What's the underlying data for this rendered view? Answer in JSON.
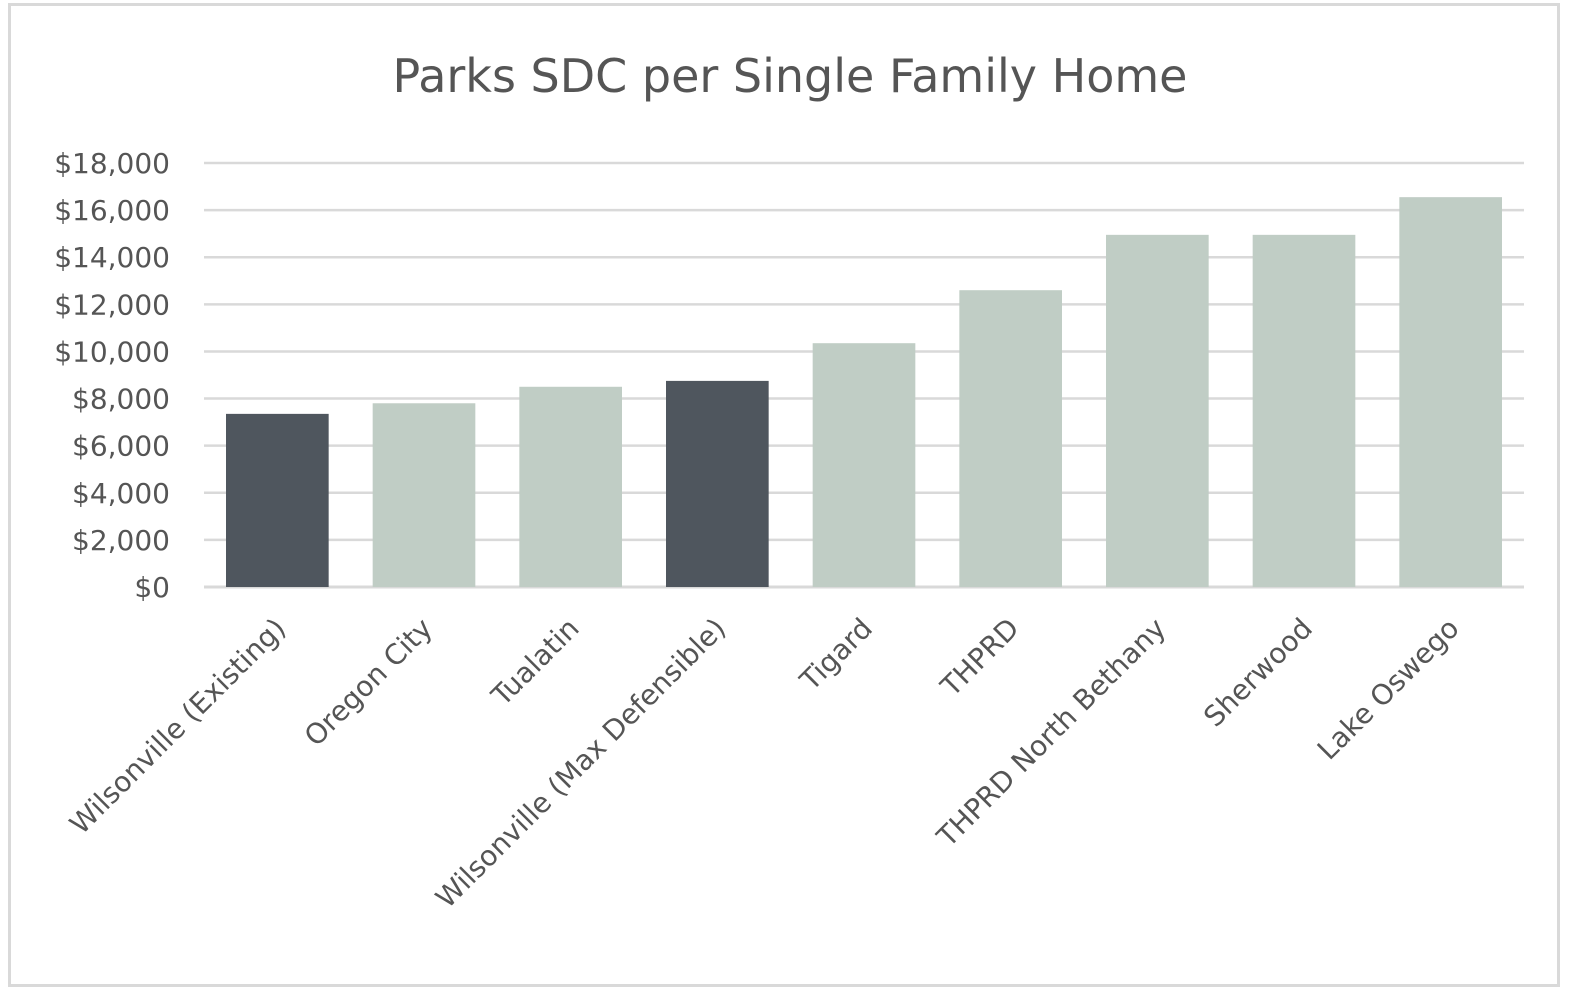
{
  "chart_data": {
    "type": "bar",
    "title": "Parks SDC per Single Family Home",
    "categories": [
      "Wilsonville (Existing)",
      "Oregon City",
      "Tualatin",
      "Wilsonville (Max Defensible)",
      "Tigard",
      "THPRD",
      "THPRD North Bethany",
      "Sherwood",
      "Lake Oswego"
    ],
    "values": [
      7350,
      7800,
      8500,
      8750,
      10350,
      12600,
      14950,
      14950,
      16550
    ],
    "highlight": [
      true,
      false,
      false,
      true,
      false,
      false,
      false,
      false,
      false
    ],
    "ylim": [
      0,
      18000
    ],
    "ytick_step": 2000,
    "ytick_labels": [
      "$0",
      "$2,000",
      "$4,000",
      "$6,000",
      "$8,000",
      "$10,000",
      "$12,000",
      "$14,000",
      "$16,000",
      "$18,000"
    ],
    "grid": true,
    "legend": "none",
    "colors": {
      "highlight": "#4f565e",
      "default": "#c0cdc5",
      "grid": "#d9d9d9",
      "text": "#555555"
    }
  }
}
